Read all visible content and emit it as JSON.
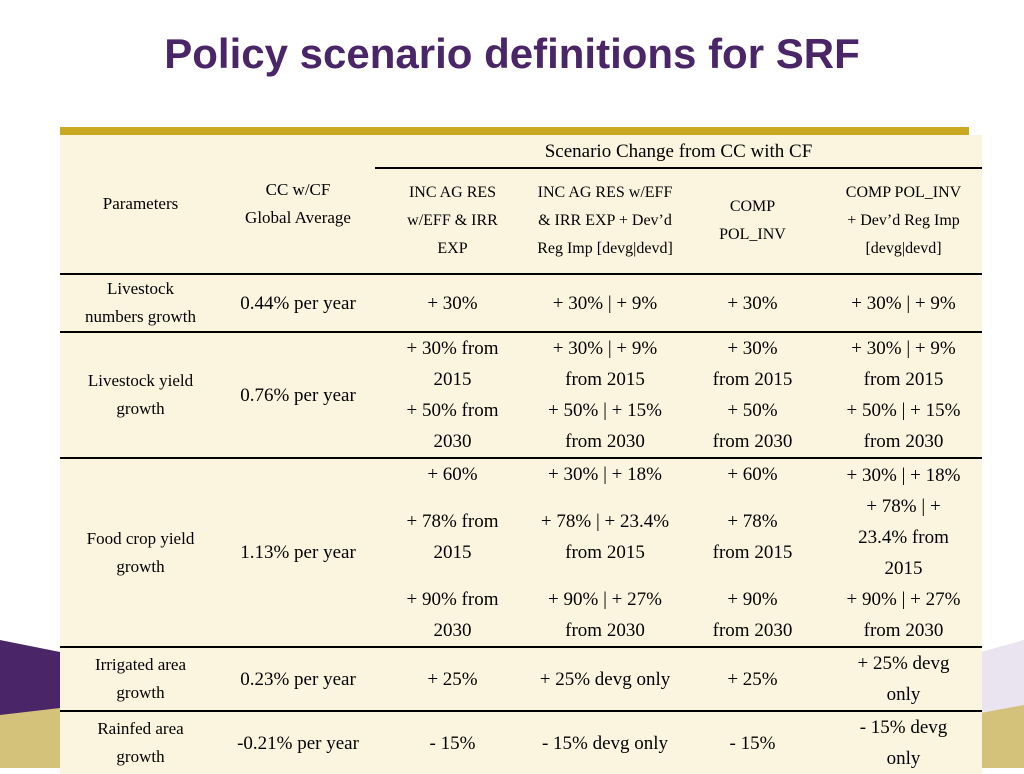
{
  "title": "Policy scenario definitions for SRF",
  "table": {
    "group_header": "Scenario Change from CC with CF",
    "headers": {
      "parameters": "Parameters",
      "ccwcf": [
        "CC w/CF",
        "Global Average"
      ],
      "s1": [
        "INC AG RES",
        "w/EFF & IRR",
        "EXP"
      ],
      "s2": [
        "INC AG RES w/EFF",
        "& IRR EXP + Dev’d",
        "Reg Imp [devg|devd]"
      ],
      "s3": [
        "COMP",
        "POL_INV"
      ],
      "s4": [
        "COMP POL_INV",
        "+ Dev’d Reg Imp",
        "[devg|devd]"
      ]
    },
    "rows": [
      {
        "param": [
          "Livestock",
          "numbers growth"
        ],
        "avg": "0.44% per year",
        "s1": "+ 30%",
        "s2": "+ 30% | + 9%",
        "s3": "+ 30%",
        "s4": "+ 30% | + 9%"
      },
      {
        "param": [
          "Livestock yield",
          "growth"
        ],
        "avg": "0.76% per year",
        "s1": [
          "+ 30% from",
          "2015",
          "+ 50% from",
          "2030"
        ],
        "s2": [
          "+ 30% | + 9%",
          "from 2015",
          "+ 50% | + 15%",
          "from 2030"
        ],
        "s3": [
          "+ 30%",
          "from 2015",
          "+ 50%",
          "from 2030"
        ],
        "s4": [
          "+ 30% | + 9%",
          "from 2015",
          "+ 50% | + 15%",
          "from 2030"
        ]
      },
      {
        "param": [
          "Food crop yield",
          "growth"
        ],
        "avg": "1.13% per year",
        "s1": [
          "+ 60%",
          "+ 78% from",
          "2015",
          "+ 90% from",
          "2030"
        ],
        "s2": [
          "+ 30% | + 18%",
          "+ 78% | + 23.4%",
          "from 2015",
          "+ 90% | + 27%",
          "from 2030"
        ],
        "s3": [
          "+ 60%",
          "+ 78%",
          "from 2015",
          "+ 90%",
          "from 2030"
        ],
        "s4": [
          "+ 30% | + 18%",
          "+ 78% | +",
          "23.4% from",
          "2015",
          "+ 90% | + 27%",
          "from 2030"
        ]
      },
      {
        "param": [
          "Irrigated area",
          "growth"
        ],
        "avg": "0.23% per year",
        "s1": "+ 25%",
        "s2": "+ 25% devg only",
        "s3": "+ 25%",
        "s4": [
          "+ 25% devg",
          "only"
        ]
      },
      {
        "param": [
          "Rainfed area",
          "growth"
        ],
        "avg": "-0.21% per year",
        "s1": "- 15%",
        "s2": "- 15% devg only",
        "s3": "- 15%",
        "s4": [
          "- 15% devg",
          "only"
        ]
      }
    ]
  }
}
